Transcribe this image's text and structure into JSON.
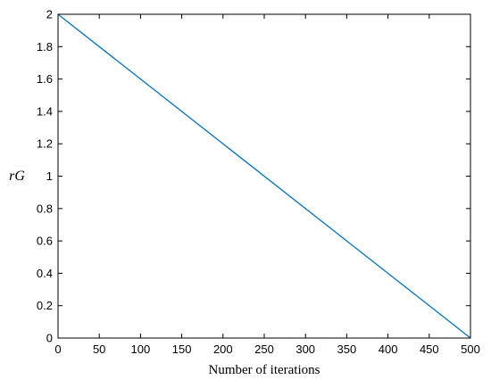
{
  "chart_data": {
    "type": "line",
    "title": "",
    "xlabel": "Number of iterations",
    "ylabel": "rG",
    "xlim": [
      0,
      500
    ],
    "ylim": [
      0,
      2
    ],
    "x_ticks": [
      0,
      50,
      100,
      150,
      200,
      250,
      300,
      350,
      400,
      450,
      500
    ],
    "y_ticks": [
      0,
      0.2,
      0.4,
      0.6,
      0.8,
      1,
      1.2,
      1.4,
      1.6,
      1.8,
      2
    ],
    "x_tick_labels": [
      "0",
      "50",
      "100",
      "150",
      "200",
      "250",
      "300",
      "350",
      "400",
      "450",
      "500"
    ],
    "y_tick_labels": [
      "0",
      "0.2",
      "0.4",
      "0.6",
      "0.8",
      "1",
      "1.2",
      "1.4",
      "1.6",
      "1.8",
      "2"
    ],
    "grid": false,
    "series": [
      {
        "color": "#0072BD",
        "x": [
          0,
          500
        ],
        "y": [
          2,
          0
        ]
      }
    ]
  }
}
